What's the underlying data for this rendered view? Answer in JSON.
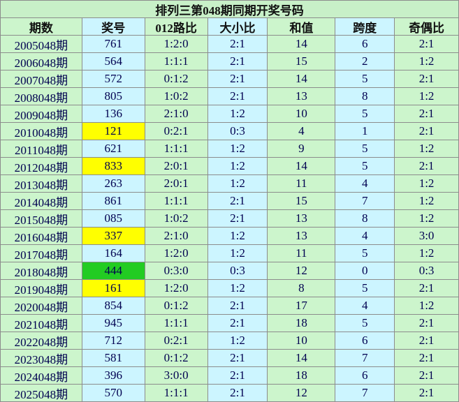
{
  "table": {
    "title": "排列三第048期同期开奖号码",
    "header": [
      "期数",
      "奖号",
      "012路比",
      "大小比",
      "和值",
      "跨度",
      "奇偶比"
    ],
    "rows": [
      {
        "cells": [
          "2005048期",
          "761",
          "1:2:0",
          "2:1",
          "14",
          "6",
          "2:1"
        ]
      },
      {
        "cells": [
          "2006048期",
          "564",
          "1:1:1",
          "2:1",
          "15",
          "2",
          "1:2"
        ]
      },
      {
        "cells": [
          "2007048期",
          "572",
          "0:1:2",
          "2:1",
          "14",
          "5",
          "2:1"
        ]
      },
      {
        "cells": [
          "2008048期",
          "805",
          "1:0:2",
          "2:1",
          "13",
          "8",
          "1:2"
        ]
      },
      {
        "cells": [
          "2009048期",
          "136",
          "2:1:0",
          "1:2",
          "10",
          "5",
          "2:1"
        ]
      },
      {
        "cells": [
          "2010048期",
          "121",
          "0:2:1",
          "0:3",
          "4",
          "1",
          "2:1"
        ],
        "highlight": "#ffff00"
      },
      {
        "cells": [
          "2011048期",
          "621",
          "1:1:1",
          "1:2",
          "9",
          "5",
          "1:2"
        ]
      },
      {
        "cells": [
          "2012048期",
          "833",
          "2:0:1",
          "1:2",
          "14",
          "5",
          "2:1"
        ],
        "highlight": "#ffff00"
      },
      {
        "cells": [
          "2013048期",
          "263",
          "2:0:1",
          "1:2",
          "11",
          "4",
          "1:2"
        ]
      },
      {
        "cells": [
          "2014048期",
          "861",
          "1:1:1",
          "2:1",
          "15",
          "7",
          "1:2"
        ]
      },
      {
        "cells": [
          "2015048期",
          "085",
          "1:0:2",
          "2:1",
          "13",
          "8",
          "1:2"
        ]
      },
      {
        "cells": [
          "2016048期",
          "337",
          "2:1:0",
          "1:2",
          "13",
          "4",
          "3:0"
        ],
        "highlight": "#ffff00"
      },
      {
        "cells": [
          "2017048期",
          "164",
          "1:2:0",
          "1:2",
          "11",
          "5",
          "1:2"
        ]
      },
      {
        "cells": [
          "2018048期",
          "444",
          "0:3:0",
          "0:3",
          "12",
          "0",
          "0:3"
        ],
        "highlight": "#22cc22"
      },
      {
        "cells": [
          "2019048期",
          "161",
          "1:2:0",
          "1:2",
          "8",
          "5",
          "2:1"
        ],
        "highlight": "#ffff00"
      },
      {
        "cells": [
          "2020048期",
          "854",
          "0:1:2",
          "2:1",
          "17",
          "4",
          "1:2"
        ]
      },
      {
        "cells": [
          "2021048期",
          "945",
          "1:1:1",
          "2:1",
          "18",
          "5",
          "2:1"
        ]
      },
      {
        "cells": [
          "2022048期",
          "712",
          "0:2:1",
          "1:2",
          "10",
          "6",
          "2:1"
        ]
      },
      {
        "cells": [
          "2023048期",
          "581",
          "0:1:2",
          "2:1",
          "14",
          "7",
          "2:1"
        ]
      },
      {
        "cells": [
          "2024048期",
          "396",
          "3:0:0",
          "2:1",
          "18",
          "6",
          "2:1"
        ]
      },
      {
        "cells": [
          "2025048期",
          "570",
          "1:1:1",
          "2:1",
          "12",
          "7",
          "2:1"
        ]
      }
    ]
  }
}
